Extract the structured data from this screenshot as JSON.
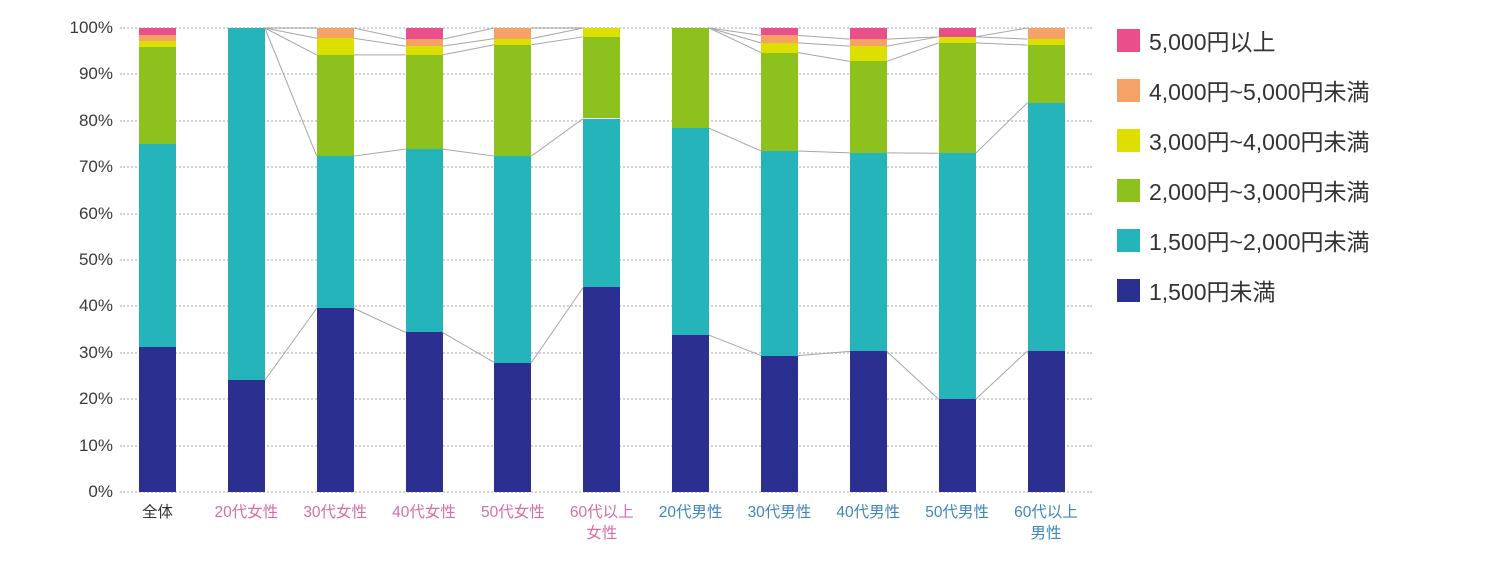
{
  "chart_data": {
    "type": "bar",
    "variant": "100%-stacked-column",
    "title": "",
    "xlabel": "",
    "ylabel": "",
    "ylim": [
      0,
      100
    ],
    "yticks": [
      "0%",
      "10%",
      "20%",
      "30%",
      "40%",
      "50%",
      "60%",
      "70%",
      "80%",
      "90%",
      "100%"
    ],
    "grid": "horizontal-dotted",
    "legend_position": "right",
    "categories": [
      {
        "label": "全体",
        "color": "#333333"
      },
      {
        "label": "20代女性",
        "color": "#d76da5"
      },
      {
        "label": "30代女性",
        "color": "#d76da5"
      },
      {
        "label": "40代女性",
        "color": "#d76da5"
      },
      {
        "label": "50代女性",
        "color": "#d76da5"
      },
      {
        "label": "60代以上\n女性",
        "color": "#d76da5"
      },
      {
        "label": "20代男性",
        "color": "#3d86bd"
      },
      {
        "label": "30代男性",
        "color": "#3d86bd"
      },
      {
        "label": "40代男性",
        "color": "#3d86bd"
      },
      {
        "label": "50代男性",
        "color": "#3d86bd"
      },
      {
        "label": "60代以上\n男性",
        "color": "#3d86bd"
      }
    ],
    "series": [
      {
        "name": "1,500円未満",
        "color": "#2a2f90",
        "values": [
          31.3,
          24.1,
          39.6,
          34.4,
          27.9,
          44.1,
          33.8,
          29.4,
          30.3,
          20.0,
          30.4
        ]
      },
      {
        "name": "1,500円~2,000円未満",
        "color": "#26b4bb",
        "values": [
          43.8,
          75.9,
          32.8,
          39.5,
          44.5,
          36.4,
          44.6,
          44.1,
          42.8,
          53.0,
          53.5
        ]
      },
      {
        "name": "2,000円~3,000円未満",
        "color": "#8dc21e",
        "values": [
          20.8,
          0.0,
          21.8,
          20.3,
          24.0,
          17.6,
          21.6,
          21.2,
          19.7,
          23.8,
          12.4
        ]
      },
      {
        "name": "3,000円~4,000円未満",
        "color": "#dcdf00",
        "values": [
          1.4,
          0.0,
          3.6,
          1.9,
          1.3,
          1.9,
          0.0,
          2.1,
          3.3,
          1.3,
          1.3
        ]
      },
      {
        "name": "4,000円~5,000円未満",
        "color": "#f5a168",
        "values": [
          1.3,
          0.0,
          2.2,
          1.5,
          2.3,
          0.0,
          0.0,
          1.6,
          1.5,
          0.0,
          2.4
        ]
      },
      {
        "name": "5,000円以上",
        "color": "#e94f8a",
        "values": [
          1.4,
          0.0,
          0.0,
          2.4,
          0.0,
          0.0,
          0.0,
          1.6,
          2.4,
          1.9,
          0.0
        ]
      }
    ],
    "legend_order_top_to_bottom": [
      "5,000円以上",
      "4,000円~5,000円未満",
      "3,000円~4,000円未満",
      "2,000円~3,000円未満",
      "1,500円~2,000円未満",
      "1,500円未満"
    ],
    "connector_lines": {
      "color": "#a6a6a6",
      "groups": [
        [
          1,
          2,
          3,
          4,
          5
        ],
        [
          6,
          7,
          8,
          9,
          10
        ]
      ],
      "note": "gray series lines join cumulative segment boundaries between adjacent bars within the female group and within the male group"
    }
  }
}
